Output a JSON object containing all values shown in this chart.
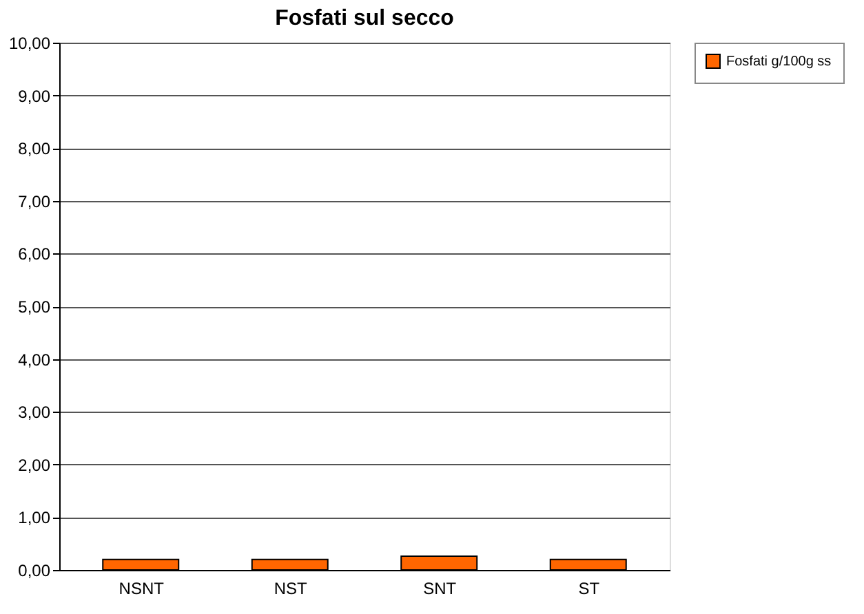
{
  "chart_data": {
    "type": "bar",
    "title": "Fosfati sul secco",
    "categories": [
      "NSNT",
      "NST",
      "SNT",
      "ST"
    ],
    "series": [
      {
        "name": "Fosfati g/100g ss",
        "color": "#ff6600",
        "values": [
          0.2,
          0.2,
          0.26,
          0.2
        ]
      }
    ],
    "ylim": [
      0,
      10
    ],
    "yticks": [
      {
        "value": 0,
        "label": "0,00"
      },
      {
        "value": 1,
        "label": "1,00"
      },
      {
        "value": 2,
        "label": "2,00"
      },
      {
        "value": 3,
        "label": "3,00"
      },
      {
        "value": 4,
        "label": "4,00"
      },
      {
        "value": 5,
        "label": "5,00"
      },
      {
        "value": 6,
        "label": "6,00"
      },
      {
        "value": 7,
        "label": "7,00"
      },
      {
        "value": 8,
        "label": "8,00"
      },
      {
        "value": 9,
        "label": "9,00"
      },
      {
        "value": 10,
        "label": "10,00"
      }
    ],
    "grid": "y",
    "legend": "right"
  }
}
